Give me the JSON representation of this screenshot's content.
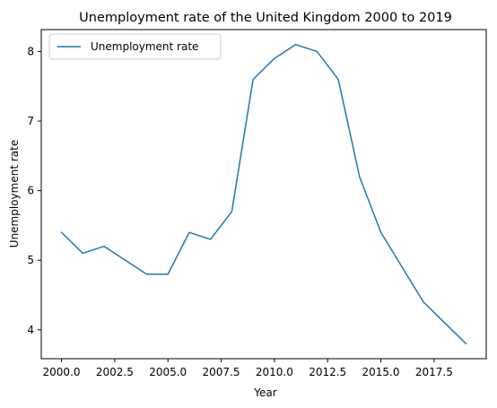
{
  "chart_data": {
    "type": "line",
    "title": "Unemployment rate of the United Kingdom 2000 to 2019",
    "xlabel": "Year",
    "ylabel": "Unemployment rate",
    "xlim": [
      1999.05,
      2019.95
    ],
    "ylim": [
      3.585,
      8.315
    ],
    "xticks": [
      2000,
      2002.5,
      2005,
      2007.5,
      2010,
      2012.5,
      2015,
      2017.5
    ],
    "xtick_labels": [
      "2000.0",
      "2002.5",
      "2005.0",
      "2007.5",
      "2010.0",
      "2012.5",
      "2015.0",
      "2017.5"
    ],
    "yticks": [
      4,
      5,
      6,
      7,
      8
    ],
    "ytick_labels": [
      "4",
      "5",
      "6",
      "7",
      "8"
    ],
    "grid": false,
    "legend_position": "top-left",
    "series": [
      {
        "name": "Unemployment rate",
        "color": "#1f77b4",
        "x": [
          2000,
          2001,
          2002,
          2003,
          2004,
          2005,
          2006,
          2007,
          2008,
          2009,
          2010,
          2011,
          2012,
          2013,
          2014,
          2015,
          2016,
          2017,
          2018,
          2019
        ],
        "values": [
          5.4,
          5.1,
          5.2,
          5.0,
          4.8,
          4.8,
          5.4,
          5.3,
          5.7,
          7.6,
          7.9,
          8.1,
          8.0,
          7.6,
          6.2,
          5.4,
          4.9,
          4.4,
          4.1,
          3.8
        ]
      }
    ]
  }
}
